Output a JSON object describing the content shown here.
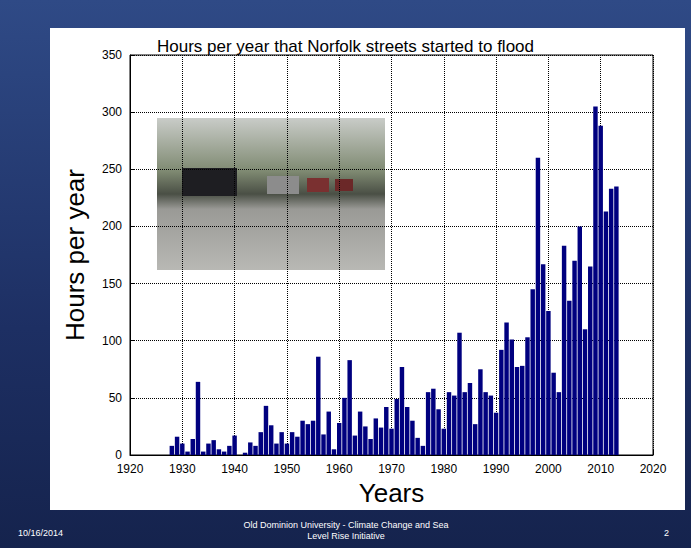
{
  "chart_data": {
    "type": "bar",
    "title": "Hours per year that Norfolk streets started to flood",
    "x_label": "Years",
    "y_label": "Hours per year",
    "x": [
      1928,
      1929,
      1930,
      1931,
      1932,
      1933,
      1934,
      1935,
      1936,
      1937,
      1938,
      1939,
      1940,
      1941,
      1942,
      1943,
      1944,
      1945,
      1946,
      1947,
      1948,
      1949,
      1950,
      1951,
      1952,
      1953,
      1954,
      1955,
      1956,
      1957,
      1958,
      1959,
      1960,
      1961,
      1962,
      1963,
      1964,
      1965,
      1966,
      1967,
      1968,
      1969,
      1970,
      1971,
      1972,
      1973,
      1974,
      1975,
      1976,
      1977,
      1978,
      1979,
      1980,
      1981,
      1982,
      1983,
      1984,
      1985,
      1986,
      1987,
      1988,
      1989,
      1990,
      1991,
      1992,
      1993,
      1994,
      1995,
      1996,
      1997,
      1998,
      1999,
      2000,
      2001,
      2002,
      2003,
      2004,
      2005,
      2006,
      2007,
      2008,
      2009,
      2010,
      2011,
      2012,
      2013
    ],
    "values": [
      8,
      16,
      10,
      3,
      14,
      64,
      3,
      10,
      13,
      5,
      3,
      8,
      17,
      0,
      2,
      11,
      8,
      20,
      43,
      26,
      10,
      20,
      10,
      20,
      16,
      30,
      27,
      30,
      86,
      18,
      38,
      5,
      28,
      50,
      83,
      17,
      38,
      25,
      14,
      32,
      24,
      42,
      23,
      49,
      77,
      42,
      30,
      15,
      8,
      55,
      58,
      40,
      23,
      55,
      52,
      107,
      55,
      63,
      27,
      75,
      55,
      52,
      37,
      92,
      116,
      101,
      77,
      78,
      103,
      145,
      260,
      167,
      126,
      72,
      55,
      183,
      135,
      170,
      200,
      110,
      165,
      305,
      288,
      213,
      233,
      235
    ],
    "color": "#00007f",
    "xlim": [
      1920,
      2020
    ],
    "xticks": [
      1920,
      1930,
      1940,
      1950,
      1960,
      1970,
      1980,
      1990,
      2000,
      2010,
      2020
    ],
    "ylim": [
      0,
      350
    ],
    "yticks": [
      0,
      50,
      100,
      150,
      200,
      250,
      300,
      350
    ],
    "grid": true
  },
  "footer": {
    "date": "10/16/2014",
    "text": "Old Dominion University - Climate Change and Sea Level Rise Initiative",
    "page": 2
  }
}
